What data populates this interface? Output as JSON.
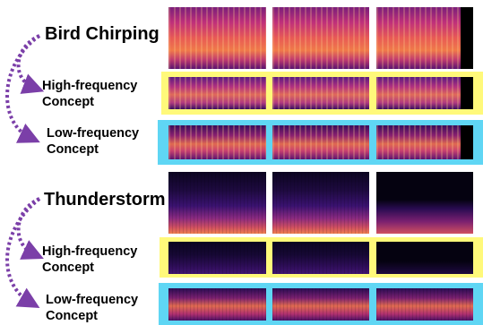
{
  "groups": [
    {
      "title": "Bird Chirping",
      "rows": [
        "High-frequency Concept",
        "Low-frequency Concept"
      ]
    },
    {
      "title": "Thunderstorm",
      "rows": [
        "High-frequency Concept",
        "Low-frequency Concept"
      ]
    }
  ],
  "labels": {
    "bird_title": "Bird Chirping",
    "bird_high_1": "High-frequency",
    "bird_high_2": "Concept",
    "bird_low_1": "Low-frequency",
    "bird_low_2": "Concept",
    "thunder_title": "Thunderstorm",
    "thunder_high_1": "High-frequency",
    "thunder_high_2": "Concept",
    "thunder_low_1": "Low-frequency",
    "thunder_low_2": "Concept"
  },
  "colors": {
    "highlight_high": "#fff97a",
    "highlight_low": "#5fd6f4",
    "arrow": "#7b3fa8",
    "spec_dark": "#0b0420",
    "spec_bright": "#ff8a3d"
  }
}
